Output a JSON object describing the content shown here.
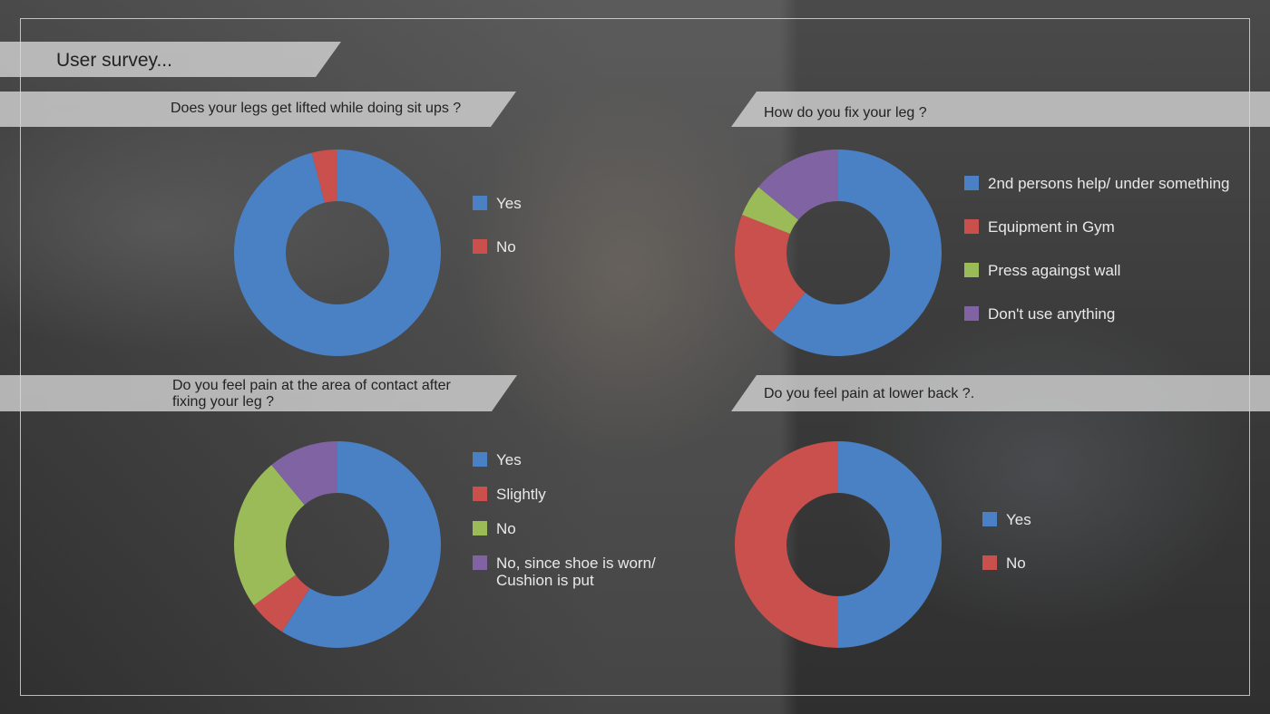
{
  "page": {
    "title": "User survey..."
  },
  "chart_data": [
    {
      "type": "pie",
      "title": "Does your legs get lifted while doing sit ups ?",
      "categories": [
        "Yes",
        "No"
      ],
      "values": [
        96,
        4
      ],
      "colors": [
        "#4a81c4",
        "#c9504c"
      ],
      "legend_placement": "right"
    },
    {
      "type": "pie",
      "title": "How do you fix your leg ?",
      "categories": [
        "2nd persons help/ under something",
        "Equipment in Gym",
        "Press againgst wall",
        "Don't use anything"
      ],
      "values": [
        61,
        20,
        5,
        14
      ],
      "colors": [
        "#4a81c4",
        "#c9504c",
        "#9bbb58",
        "#8063a3"
      ],
      "legend_placement": "right"
    },
    {
      "type": "pie",
      "title": "Do you feel pain at the area of contact after fixing your leg ?",
      "title_lines": [
        "Do you feel pain at the area of contact after",
        " fixing your leg ?"
      ],
      "categories": [
        "Yes",
        "Slightly",
        "No",
        "No, since shoe is worn/ Cushion is put"
      ],
      "legend_lines": [
        [
          "Yes"
        ],
        [
          "Slightly"
        ],
        [
          "No"
        ],
        [
          "No, since shoe is worn/",
          "Cushion is put"
        ]
      ],
      "values": [
        59,
        6,
        24,
        11
      ],
      "colors": [
        "#4a81c4",
        "#c9504c",
        "#9bbb58",
        "#8063a3"
      ],
      "legend_placement": "right"
    },
    {
      "type": "pie",
      "title": "Do you feel pain at lower back ?.",
      "categories": [
        "Yes",
        "No"
      ],
      "values": [
        50,
        50
      ],
      "colors": [
        "#4a81c4",
        "#c9504c"
      ],
      "legend_placement": "right"
    }
  ]
}
